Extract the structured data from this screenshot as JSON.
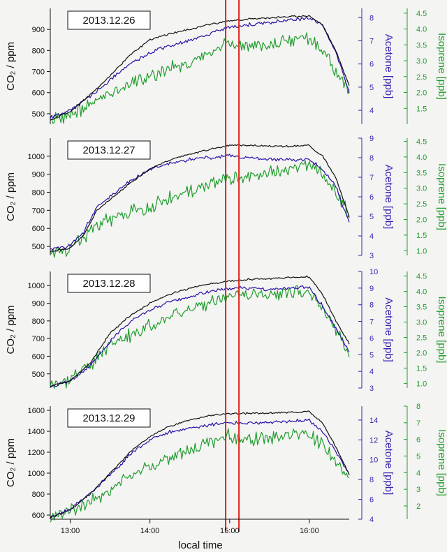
{
  "colors": {
    "co2": "#111111",
    "acetone": "#2a0fa8",
    "isoprene": "#1f9e2e",
    "marker": "#e0201a",
    "axis_left": "#111111",
    "axis_acetone": "#3a1fb0",
    "axis_isoprene": "#1f9e2e",
    "background": "#f4f4f2"
  },
  "labels": {
    "x_axis": "local time",
    "co2_axis": "CO₂ / ppm",
    "acetone_axis": "Acetone [ppb]",
    "isoprene_axis": "Isoprene [ppb]"
  },
  "chart_data": {
    "type": "line",
    "xlabel": "local time",
    "x_range": [
      "12:45",
      "16:30"
    ],
    "x_ticks": [
      "13:00",
      "14:00",
      "15:00",
      "16:00"
    ],
    "markers": [
      "14:57",
      "15:07"
    ],
    "panels": [
      {
        "date": "2013.12.26",
        "co2": {
          "ylabel": "CO₂ / ppm",
          "ylim": [
            450,
            1000
          ],
          "ticks": [
            500,
            600,
            700,
            800,
            900
          ]
        },
        "acetone": {
          "ylabel": "Acetone [ppb]",
          "ylim": [
            3.4,
            8.4
          ],
          "ticks": [
            4,
            5,
            6,
            7,
            8
          ]
        },
        "isoprene": {
          "ylabel": "Isoprene [ppb]",
          "ylim": [
            1.0,
            4.65
          ],
          "ticks": [
            1.5,
            2.0,
            2.5,
            3.0,
            3.5,
            4.0,
            4.5
          ]
        },
        "series": [
          {
            "name": "CO₂",
            "axis": "co2",
            "x": [
              "12:45",
              "13:00",
              "13:15",
              "13:30",
              "13:45",
              "14:00",
              "14:15",
              "14:30",
              "14:45",
              "15:00",
              "15:15",
              "15:30",
              "15:45",
              "16:00",
              "16:10",
              "16:20",
              "16:30"
            ],
            "values": [
              470,
              510,
              590,
              680,
              780,
              850,
              880,
              900,
              925,
              940,
              950,
              955,
              960,
              965,
              920,
              800,
              630
            ]
          },
          {
            "name": "Acetone",
            "axis": "acetone",
            "x": [
              "12:45",
              "13:00",
              "13:15",
              "13:30",
              "13:45",
              "14:00",
              "14:15",
              "14:30",
              "14:45",
              "15:00",
              "15:15",
              "15:30",
              "15:45",
              "16:00",
              "16:10",
              "16:20",
              "16:30"
            ],
            "values": [
              3.7,
              4.0,
              4.6,
              5.3,
              6.0,
              6.5,
              6.8,
              7.0,
              7.3,
              7.6,
              7.7,
              7.8,
              7.9,
              8.0,
              7.7,
              6.5,
              4.8
            ]
          },
          {
            "name": "Isoprene",
            "axis": "isoprene",
            "x": [
              "12:45",
              "13:00",
              "13:15",
              "13:30",
              "13:45",
              "14:00",
              "14:15",
              "14:30",
              "14:45",
              "15:00",
              "15:15",
              "15:30",
              "15:45",
              "16:00",
              "16:10",
              "16:20",
              "16:30"
            ],
            "values": [
              1.1,
              1.3,
              1.6,
              2.0,
              2.3,
              2.5,
              2.75,
              2.95,
              3.2,
              3.55,
              3.45,
              3.5,
              3.6,
              3.75,
              3.3,
              2.7,
              2.0
            ]
          }
        ]
      },
      {
        "date": "2013.12.27",
        "co2": {
          "ylabel": "CO₂ / ppm",
          "ylim": [
            450,
            1100
          ],
          "ticks": [
            500,
            600,
            700,
            800,
            900,
            1000
          ]
        },
        "acetone": {
          "ylabel": "Acetone [ppb]",
          "ylim": [
            3,
            9
          ],
          "ticks": [
            3,
            4,
            5,
            6,
            7,
            8,
            9
          ]
        },
        "isoprene": {
          "ylabel": "Isoprene [ppb]",
          "ylim": [
            0.85,
            4.6
          ],
          "ticks": [
            1.0,
            1.5,
            2.0,
            2.5,
            3.0,
            3.5,
            4.0,
            4.5
          ]
        },
        "series": [
          {
            "name": "CO₂",
            "axis": "co2",
            "x": [
              "12:45",
              "13:00",
              "13:10",
              "13:20",
              "13:30",
              "13:45",
              "14:00",
              "14:15",
              "14:30",
              "14:45",
              "15:00",
              "15:15",
              "15:30",
              "15:45",
              "16:00",
              "16:10",
              "16:20",
              "16:30"
            ],
            "values": [
              470,
              490,
              560,
              700,
              760,
              850,
              930,
              980,
              1010,
              1040,
              1060,
              1060,
              1055,
              1055,
              1060,
              1000,
              880,
              660
            ]
          },
          {
            "name": "Acetone",
            "axis": "acetone",
            "x": [
              "12:45",
              "13:00",
              "13:10",
              "13:20",
              "13:30",
              "13:45",
              "14:00",
              "14:15",
              "14:30",
              "14:45",
              "15:00",
              "15:15",
              "15:30",
              "15:45",
              "16:00",
              "16:10",
              "16:20",
              "16:30"
            ],
            "values": [
              3.3,
              3.5,
              4.2,
              5.5,
              6.0,
              6.8,
              7.4,
              7.7,
              7.9,
              8.0,
              8.1,
              8.0,
              7.9,
              7.9,
              7.9,
              7.4,
              6.5,
              4.7
            ]
          },
          {
            "name": "Isoprene",
            "axis": "isoprene",
            "x": [
              "12:45",
              "13:00",
              "13:10",
              "13:20",
              "13:30",
              "13:45",
              "14:00",
              "14:15",
              "14:30",
              "14:45",
              "15:00",
              "15:15",
              "15:30",
              "15:45",
              "16:00",
              "16:10",
              "16:20",
              "16:30"
            ],
            "values": [
              1.0,
              1.1,
              1.4,
              1.8,
              2.0,
              2.2,
              2.45,
              2.7,
              2.9,
              3.1,
              3.3,
              3.4,
              3.5,
              3.6,
              3.75,
              3.4,
              2.9,
              2.1
            ]
          }
        ]
      },
      {
        "date": "2013.12.28",
        "co2": {
          "ylabel": "CO₂ / ppm",
          "ylim": [
            420,
            1080
          ],
          "ticks": [
            500,
            600,
            700,
            800,
            900,
            1000
          ]
        },
        "acetone": {
          "ylabel": "Acetone [ppb]",
          "ylim": [
            3,
            10
          ],
          "ticks": [
            3,
            4,
            5,
            6,
            7,
            8,
            9,
            10
          ]
        },
        "isoprene": {
          "ylabel": "Isoprene [ppb]",
          "ylim": [
            0.85,
            4.65
          ],
          "ticks": [
            1.0,
            1.5,
            2.0,
            2.5,
            3.0,
            3.5,
            4.0,
            4.5
          ]
        },
        "series": [
          {
            "name": "CO₂",
            "axis": "co2",
            "x": [
              "12:45",
              "13:00",
              "13:15",
              "13:30",
              "13:45",
              "14:00",
              "14:15",
              "14:30",
              "14:45",
              "15:00",
              "15:15",
              "15:30",
              "15:45",
              "16:00",
              "16:10",
              "16:20",
              "16:30"
            ],
            "values": [
              430,
              460,
              560,
              730,
              830,
              900,
              950,
              985,
              1010,
              1025,
              1035,
              1040,
              1045,
              1050,
              950,
              800,
              670
            ]
          },
          {
            "name": "Acetone",
            "axis": "acetone",
            "x": [
              "12:45",
              "13:00",
              "13:15",
              "13:30",
              "13:45",
              "14:00",
              "14:15",
              "14:30",
              "14:45",
              "15:00",
              "15:15",
              "15:30",
              "15:45",
              "16:00",
              "16:10",
              "16:20",
              "16:30"
            ],
            "values": [
              3.1,
              3.4,
              4.3,
              5.8,
              7.0,
              7.7,
              8.2,
              8.5,
              8.8,
              9.0,
              9.0,
              8.9,
              9.0,
              9.1,
              7.9,
              6.6,
              5.1
            ]
          },
          {
            "name": "Isoprene",
            "axis": "isoprene",
            "x": [
              "12:45",
              "13:00",
              "13:15",
              "13:30",
              "13:45",
              "14:00",
              "14:15",
              "14:30",
              "14:45",
              "15:00",
              "15:15",
              "15:30",
              "15:45",
              "16:00",
              "16:10",
              "16:20",
              "16:30"
            ],
            "values": [
              1.0,
              1.1,
              1.6,
              2.2,
              2.6,
              2.9,
              3.15,
              3.4,
              3.6,
              3.85,
              3.9,
              3.9,
              3.95,
              4.0,
              3.4,
              2.8,
              2.0
            ]
          }
        ]
      },
      {
        "date": "2013.12.29",
        "co2": {
          "ylabel": "CO₂ / ppm",
          "ylim": [
            560,
            1640
          ],
          "ticks": [
            600,
            800,
            1000,
            1200,
            1400,
            1600
          ]
        },
        "acetone": {
          "ylabel": "Acetone [ppb]",
          "ylim": [
            4,
            15.4
          ],
          "ticks": [
            4,
            6,
            8,
            10,
            12,
            14
          ]
        },
        "isoprene": {
          "ylabel": "Isoprene [ppb]",
          "ylim": [
            1.2,
            8.0
          ],
          "ticks": [
            2,
            3,
            4,
            5,
            6,
            7,
            8
          ]
        },
        "series": [
          {
            "name": "CO₂",
            "axis": "co2",
            "x": [
              "12:45",
              "13:00",
              "13:15",
              "13:30",
              "13:45",
              "14:00",
              "14:15",
              "14:30",
              "14:45",
              "15:00",
              "15:15",
              "15:30",
              "15:45",
              "16:00",
              "16:10",
              "16:20",
              "16:30"
            ],
            "values": [
              580,
              650,
              800,
              1000,
              1200,
              1350,
              1450,
              1510,
              1550,
              1570,
              1570,
              1575,
              1580,
              1590,
              1480,
              1250,
              980
            ]
          },
          {
            "name": "Acetone",
            "axis": "acetone",
            "x": [
              "12:45",
              "13:00",
              "13:15",
              "13:30",
              "13:45",
              "14:00",
              "14:15",
              "14:30",
              "14:45",
              "15:00",
              "15:15",
              "15:30",
              "15:45",
              "16:00",
              "16:10",
              "16:20",
              "16:30"
            ],
            "values": [
              4.1,
              5.0,
              6.5,
              8.5,
              10.5,
              12.0,
              12.8,
              13.2,
              13.5,
              13.7,
              13.7,
              13.8,
              13.9,
              14.0,
              12.8,
              10.8,
              8.5
            ]
          },
          {
            "name": "Isoprene",
            "axis": "isoprene",
            "x": [
              "12:45",
              "13:00",
              "13:15",
              "13:30",
              "13:45",
              "14:00",
              "14:15",
              "14:30",
              "14:45",
              "15:00",
              "15:15",
              "15:30",
              "15:45",
              "16:00",
              "16:10",
              "16:20",
              "16:30"
            ],
            "values": [
              1.3,
              1.7,
              2.3,
              3.0,
              3.8,
              4.4,
              4.9,
              5.4,
              5.8,
              6.2,
              6.0,
              6.1,
              6.2,
              6.3,
              5.6,
              4.6,
              3.7
            ]
          }
        ]
      }
    ]
  }
}
